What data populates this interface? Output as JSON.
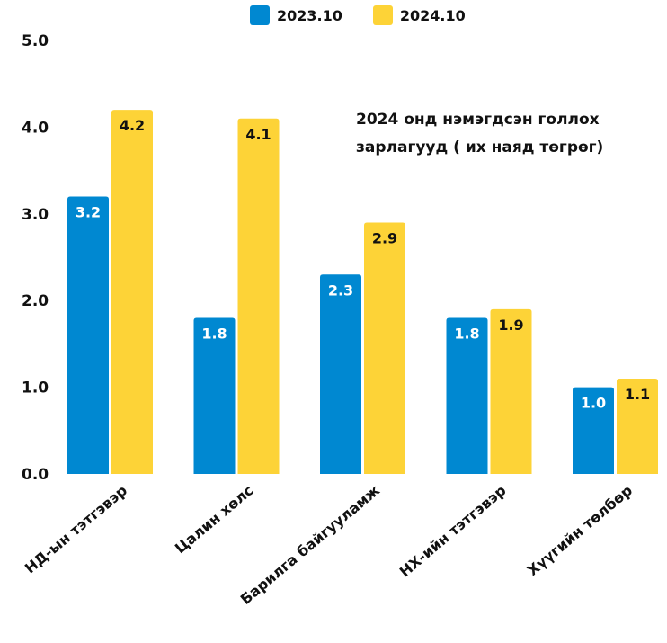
{
  "legend": [
    {
      "label": "2023.10",
      "color": "#0088D1"
    },
    {
      "label": "2024.10",
      "color": "#FDD337"
    }
  ],
  "annotation": {
    "line1": "2024 онд нэмэгдсэн голлох",
    "line2": "зарлагууд ( их наяд төгрөг)"
  },
  "chart_data": {
    "type": "bar",
    "categories": [
      "НД-ын тэтгэвэр",
      "Цалин хөлс",
      "Барилга байгууламж",
      "НХ-ийн тэтгэвэр",
      "Хүүгийн төлбөр"
    ],
    "series": [
      {
        "name": "2023.10",
        "color": "#0088D1",
        "values": [
          3.2,
          1.8,
          2.3,
          1.8,
          1.0
        ],
        "labels": [
          "3.2",
          "1.8",
          "2.3",
          "1.8",
          "1.0"
        ]
      },
      {
        "name": "2024.10",
        "color": "#FDD337",
        "values": [
          4.2,
          4.1,
          2.9,
          1.9,
          1.1
        ],
        "labels": [
          "4.2",
          "4.1",
          "2.9",
          "1.9",
          "1.1"
        ]
      }
    ],
    "yticks": [
      "0.0",
      "1.0",
      "2.0",
      "3.0",
      "4.0",
      "5.0"
    ],
    "ylim": [
      0,
      5
    ],
    "title": "",
    "xlabel": "",
    "ylabel": "",
    "grid": false,
    "legend_position": "top-center"
  }
}
